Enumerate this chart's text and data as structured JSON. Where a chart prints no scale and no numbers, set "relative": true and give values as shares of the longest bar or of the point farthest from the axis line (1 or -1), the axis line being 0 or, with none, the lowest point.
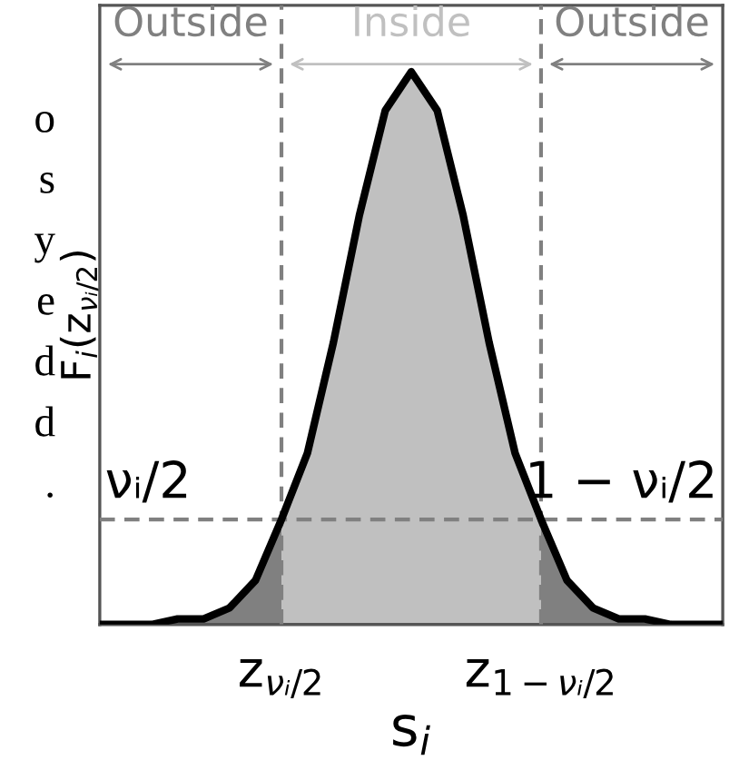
{
  "chart_data": {
    "type": "area",
    "relative": true,
    "xlabel": "s$_{i}$",
    "ylabel": "F$_{i}$(z$_{νᵢ/2}$)",
    "categories": [
      null,
      null,
      null,
      null,
      null,
      null,
      null,
      "z$_{νᵢ/2}$",
      null,
      null,
      null,
      null,
      null,
      null,
      null,
      null,
      null,
      "z$_{1−νᵢ/2}$",
      null,
      null,
      null,
      null,
      null,
      null,
      null
    ],
    "series": [
      {
        "color": "#808080",
        "values": [
          0,
          0,
          0,
          0.01,
          0.01,
          0.03,
          0.08,
          0.19,
          null,
          null,
          null,
          null,
          null,
          null,
          null,
          null,
          null,
          null,
          null,
          null,
          null,
          null,
          null,
          null,
          null
        ]
      },
      {
        "color": "#c0c0c0",
        "values": [
          null,
          null,
          null,
          null,
          null,
          null,
          null,
          0.19,
          0.31,
          0.51,
          0.74,
          0.93,
          1,
          0.93,
          0.74,
          0.51,
          0.31,
          0.19,
          null,
          null,
          null,
          null,
          null,
          null,
          null
        ]
      },
      {
        "color": "#808080",
        "values": [
          null,
          null,
          null,
          null,
          null,
          null,
          null,
          null,
          null,
          null,
          null,
          null,
          null,
          null,
          null,
          null,
          null,
          0.19,
          0.08,
          0.03,
          0.01,
          0.01,
          0,
          0,
          0
        ]
      },
      {
        "type": "line",
        "color": "#000000",
        "values": [
          0,
          0,
          0,
          0.01,
          0.01,
          0.03,
          0.08,
          0.19,
          0.31,
          0.51,
          0.74,
          0.93,
          1,
          0.93,
          0.74,
          0.51,
          0.31,
          0.19,
          0.08,
          0.03,
          0.01,
          0.01,
          0,
          0,
          0
        ]
      }
    ],
    "ref_lines": [
      {
        "axis": "x",
        "value": "z$_{νᵢ/2}$",
        "color": "#808080",
        "line_style": "dashed"
      },
      {
        "axis": "x",
        "value": "z$_{1−νᵢ/2}$",
        "color": "#808080",
        "line_style": "dashed"
      },
      {
        "axis": "y",
        "value": 0.19,
        "color": "#808080",
        "line_style": "dashed"
      }
    ],
    "annotations": [
      "Outside",
      "Inside",
      "Outside",
      {
        "text": "νᵢ/2",
        "x": "z$_{νᵢ/2}$",
        "y": 0.19
      },
      {
        "text": "1 − νᵢ/2",
        "x": "z$_{1−νᵢ/2}$",
        "y": 0.19
      },
      "o",
      "s",
      "y",
      "e",
      "d",
      "d",
      "."
    ]
  }
}
